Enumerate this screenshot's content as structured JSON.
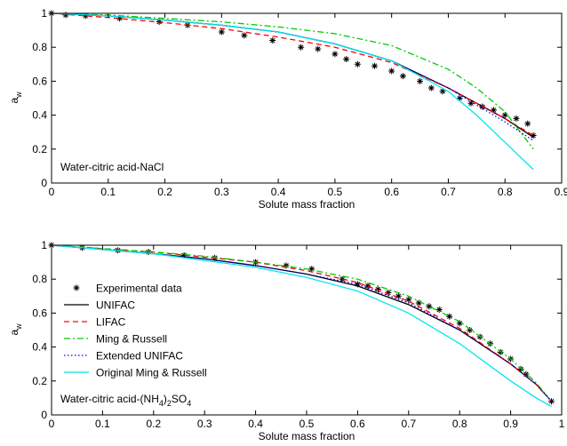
{
  "chart_data": [
    {
      "type": "line",
      "xlabel": "Solute mass fraction",
      "ylabel": [
        {
          "text": "a"
        },
        {
          "text": "w",
          "sub": true
        }
      ],
      "annotation": [
        {
          "text": "Water-citric acid-NaCl"
        }
      ],
      "xlim": [
        0,
        0.9
      ],
      "xticks": [
        0,
        0.1,
        0.2,
        0.3,
        0.4,
        0.5,
        0.6,
        0.7,
        0.8,
        0.9
      ],
      "ylim": [
        0,
        1
      ],
      "yticks": [
        0,
        0.2,
        0.4,
        0.6,
        0.8,
        1
      ],
      "series": [
        {
          "color": "#000000",
          "marker": "star",
          "dash": "none",
          "x": [
            0,
            0.025,
            0.06,
            0.12,
            0.19,
            0.24,
            0.3,
            0.34,
            0.39,
            0.44,
            0.47,
            0.5,
            0.52,
            0.54,
            0.57,
            0.6,
            0.62,
            0.65,
            0.67,
            0.69,
            0.72,
            0.74,
            0.76,
            0.78,
            0.8,
            0.82,
            0.84,
            0.85
          ],
          "values": [
            1.0,
            0.99,
            0.985,
            0.97,
            0.95,
            0.93,
            0.89,
            0.87,
            0.84,
            0.8,
            0.79,
            0.76,
            0.73,
            0.7,
            0.69,
            0.66,
            0.63,
            0.6,
            0.56,
            0.54,
            0.5,
            0.47,
            0.45,
            0.43,
            0.4,
            0.38,
            0.35,
            0.28
          ]
        },
        {
          "color": "#000000",
          "dash": "solid",
          "x": [
            0,
            0.1,
            0.2,
            0.3,
            0.4,
            0.5,
            0.6,
            0.7,
            0.75,
            0.8,
            0.85
          ],
          "values": [
            1,
            0.985,
            0.96,
            0.93,
            0.89,
            0.82,
            0.72,
            0.56,
            0.47,
            0.38,
            0.27
          ]
        },
        {
          "color": "#ff0000",
          "dash": "dashed",
          "x": [
            0,
            0.1,
            0.2,
            0.3,
            0.4,
            0.5,
            0.6,
            0.7,
            0.75,
            0.8,
            0.85
          ],
          "values": [
            1,
            0.975,
            0.945,
            0.91,
            0.86,
            0.8,
            0.71,
            0.56,
            0.47,
            0.38,
            0.28
          ]
        },
        {
          "color": "#00cc00",
          "dash": "dashdot",
          "x": [
            0,
            0.1,
            0.2,
            0.3,
            0.4,
            0.5,
            0.6,
            0.7,
            0.75,
            0.8,
            0.85
          ],
          "values": [
            1,
            0.99,
            0.97,
            0.95,
            0.92,
            0.88,
            0.81,
            0.67,
            0.56,
            0.42,
            0.2
          ]
        },
        {
          "color": "#0000ff",
          "dash": "dotted",
          "x": [
            0,
            0.1,
            0.2,
            0.3,
            0.4,
            0.5,
            0.6,
            0.7,
            0.75,
            0.8,
            0.85
          ],
          "values": [
            1,
            0.985,
            0.96,
            0.93,
            0.89,
            0.82,
            0.72,
            0.56,
            0.46,
            0.36,
            0.25
          ]
        },
        {
          "color": "#00e5ee",
          "dash": "solid",
          "x": [
            0,
            0.1,
            0.2,
            0.3,
            0.4,
            0.5,
            0.6,
            0.7,
            0.75,
            0.8,
            0.85
          ],
          "values": [
            1,
            0.985,
            0.96,
            0.93,
            0.89,
            0.82,
            0.72,
            0.54,
            0.4,
            0.24,
            0.08
          ]
        }
      ]
    },
    {
      "type": "line",
      "xlabel": "Solute mass fraction",
      "ylabel": [
        {
          "text": "a"
        },
        {
          "text": "w",
          "sub": true
        }
      ],
      "annotation": [
        {
          "text": "Water-citric acid-(NH"
        },
        {
          "text": "4",
          "sub": true
        },
        {
          "text": ")"
        },
        {
          "text": "2",
          "sub": true
        },
        {
          "text": "SO"
        },
        {
          "text": "4",
          "sub": true
        }
      ],
      "xlim": [
        0,
        1
      ],
      "xticks": [
        0,
        0.1,
        0.2,
        0.3,
        0.4,
        0.5,
        0.6,
        0.7,
        0.8,
        0.9,
        1
      ],
      "ylim": [
        0,
        1
      ],
      "yticks": [
        0,
        0.2,
        0.4,
        0.6,
        0.8,
        1
      ],
      "legend": "center left",
      "series": [
        {
          "name": "Experimental data",
          "color": "#000000",
          "marker": "star",
          "dash": "none",
          "x": [
            0,
            0.06,
            0.13,
            0.19,
            0.26,
            0.32,
            0.4,
            0.46,
            0.51,
            0.57,
            0.6,
            0.62,
            0.64,
            0.66,
            0.68,
            0.7,
            0.72,
            0.74,
            0.76,
            0.78,
            0.8,
            0.82,
            0.84,
            0.86,
            0.88,
            0.9,
            0.92,
            0.93,
            0.98
          ],
          "values": [
            1.0,
            0.985,
            0.97,
            0.96,
            0.94,
            0.925,
            0.9,
            0.88,
            0.86,
            0.8,
            0.77,
            0.76,
            0.74,
            0.72,
            0.7,
            0.68,
            0.66,
            0.64,
            0.62,
            0.58,
            0.54,
            0.5,
            0.46,
            0.42,
            0.37,
            0.33,
            0.27,
            0.24,
            0.08
          ]
        },
        {
          "name": "UNIFAC",
          "color": "#000000",
          "dash": "solid",
          "x": [
            0,
            0.1,
            0.2,
            0.3,
            0.4,
            0.5,
            0.6,
            0.7,
            0.8,
            0.9,
            0.95,
            0.98
          ],
          "values": [
            1,
            0.975,
            0.95,
            0.92,
            0.88,
            0.83,
            0.76,
            0.65,
            0.5,
            0.3,
            0.18,
            0.08
          ]
        },
        {
          "name": "LIFAC",
          "color": "#ff0000",
          "dash": "dashed",
          "x": [
            0,
            0.1,
            0.2,
            0.3,
            0.4,
            0.5,
            0.6,
            0.7,
            0.8,
            0.9,
            0.95,
            0.98
          ],
          "values": [
            1,
            0.98,
            0.96,
            0.93,
            0.9,
            0.85,
            0.78,
            0.67,
            0.51,
            0.3,
            0.18,
            0.08
          ]
        },
        {
          "name": "Ming & Russell",
          "color": "#00cc00",
          "dash": "dashdot",
          "x": [
            0,
            0.1,
            0.2,
            0.3,
            0.4,
            0.5,
            0.6,
            0.7,
            0.8,
            0.9,
            0.95,
            0.98
          ],
          "values": [
            1,
            0.98,
            0.96,
            0.935,
            0.9,
            0.86,
            0.8,
            0.7,
            0.55,
            0.33,
            0.19,
            0.08
          ]
        },
        {
          "name": "Extended UNIFAC",
          "color": "#0000ff",
          "dash": "dotted",
          "x": [
            0,
            0.1,
            0.2,
            0.3,
            0.4,
            0.5,
            0.6,
            0.7,
            0.8,
            0.9,
            0.95,
            0.98
          ],
          "values": [
            1,
            0.975,
            0.95,
            0.92,
            0.88,
            0.83,
            0.77,
            0.66,
            0.5,
            0.3,
            0.18,
            0.08
          ]
        },
        {
          "name": "Original Ming & Russell",
          "color": "#00e5ee",
          "dash": "solid",
          "x": [
            0,
            0.1,
            0.2,
            0.3,
            0.4,
            0.5,
            0.6,
            0.7,
            0.8,
            0.9,
            0.95,
            0.98
          ],
          "values": [
            1,
            0.975,
            0.95,
            0.91,
            0.87,
            0.81,
            0.73,
            0.6,
            0.42,
            0.2,
            0.1,
            0.05
          ]
        }
      ]
    }
  ]
}
